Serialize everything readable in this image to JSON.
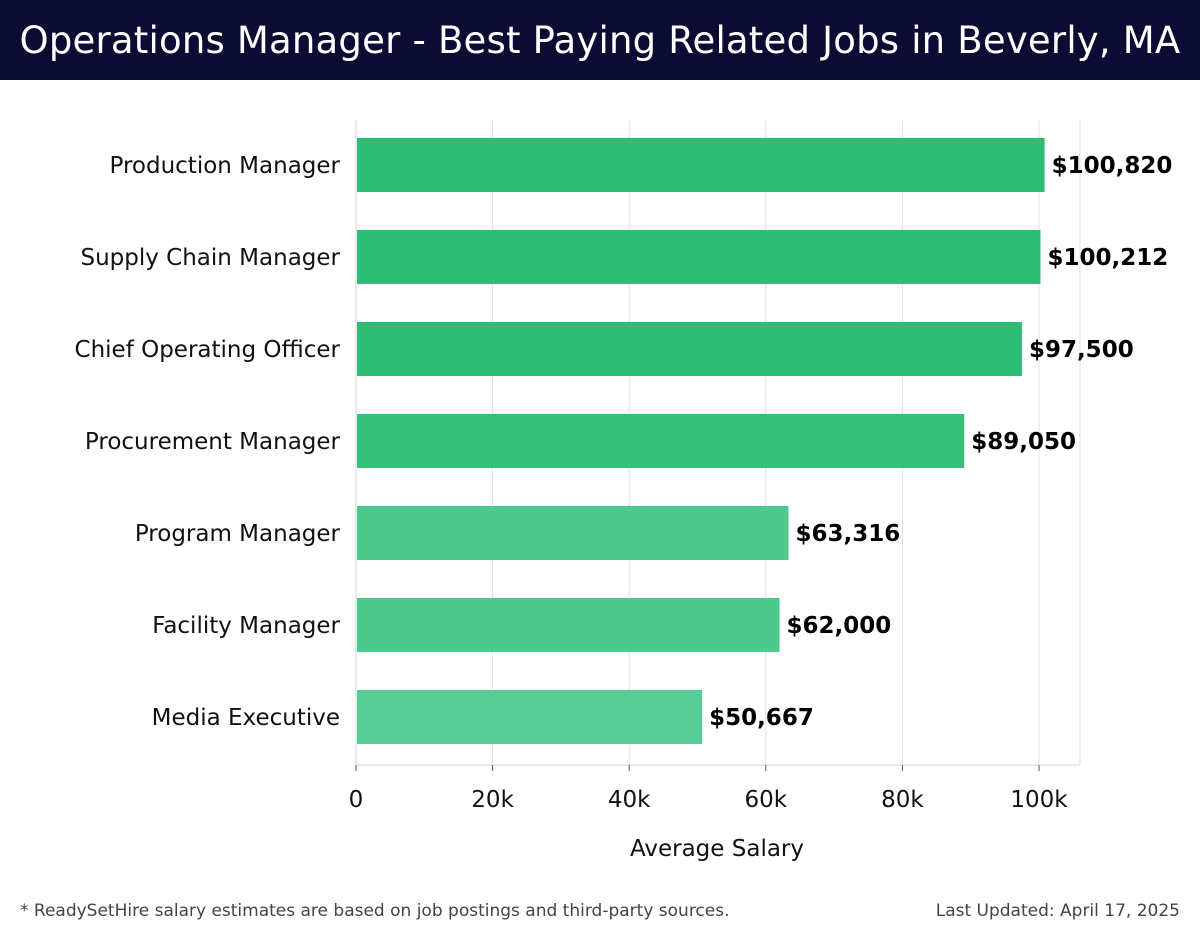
{
  "header": {
    "title": "Operations Manager - Best Paying Related Jobs in Beverly, MA"
  },
  "chart_data": {
    "type": "bar",
    "orientation": "horizontal",
    "categories": [
      "Production Manager",
      "Supply Chain Manager",
      "Chief Operating Officer",
      "Procurement Manager",
      "Program Manager",
      "Facility Manager",
      "Media Executive"
    ],
    "values": [
      100820,
      100212,
      97500,
      89050,
      63316,
      62000,
      50667
    ],
    "value_labels": [
      "$100,820",
      "$100,212",
      "$97,500",
      "$89,050",
      "$63,316",
      "$62,000",
      "$50,667"
    ],
    "bar_colors": [
      "#2ebd75",
      "#2ebd75",
      "#2ebd75",
      "#35c07a",
      "#4cc98c",
      "#4cc98c",
      "#57cc94"
    ],
    "xlabel": "Average Salary",
    "ylabel": "",
    "xlim": [
      0,
      106000
    ],
    "xticks": [
      0,
      20000,
      40000,
      60000,
      80000,
      100000
    ],
    "xtick_labels": [
      "0",
      "20k",
      "40k",
      "60k",
      "80k",
      "100k"
    ],
    "grid": "vertical",
    "legend": "none"
  },
  "footer": {
    "note": "* ReadySetHire salary estimates are based on job postings and third-party sources.",
    "updated": "Last Updated: April 17, 2025"
  },
  "colors": {
    "header_bg": "#0b0b33",
    "grid": "#e2e2e2"
  }
}
